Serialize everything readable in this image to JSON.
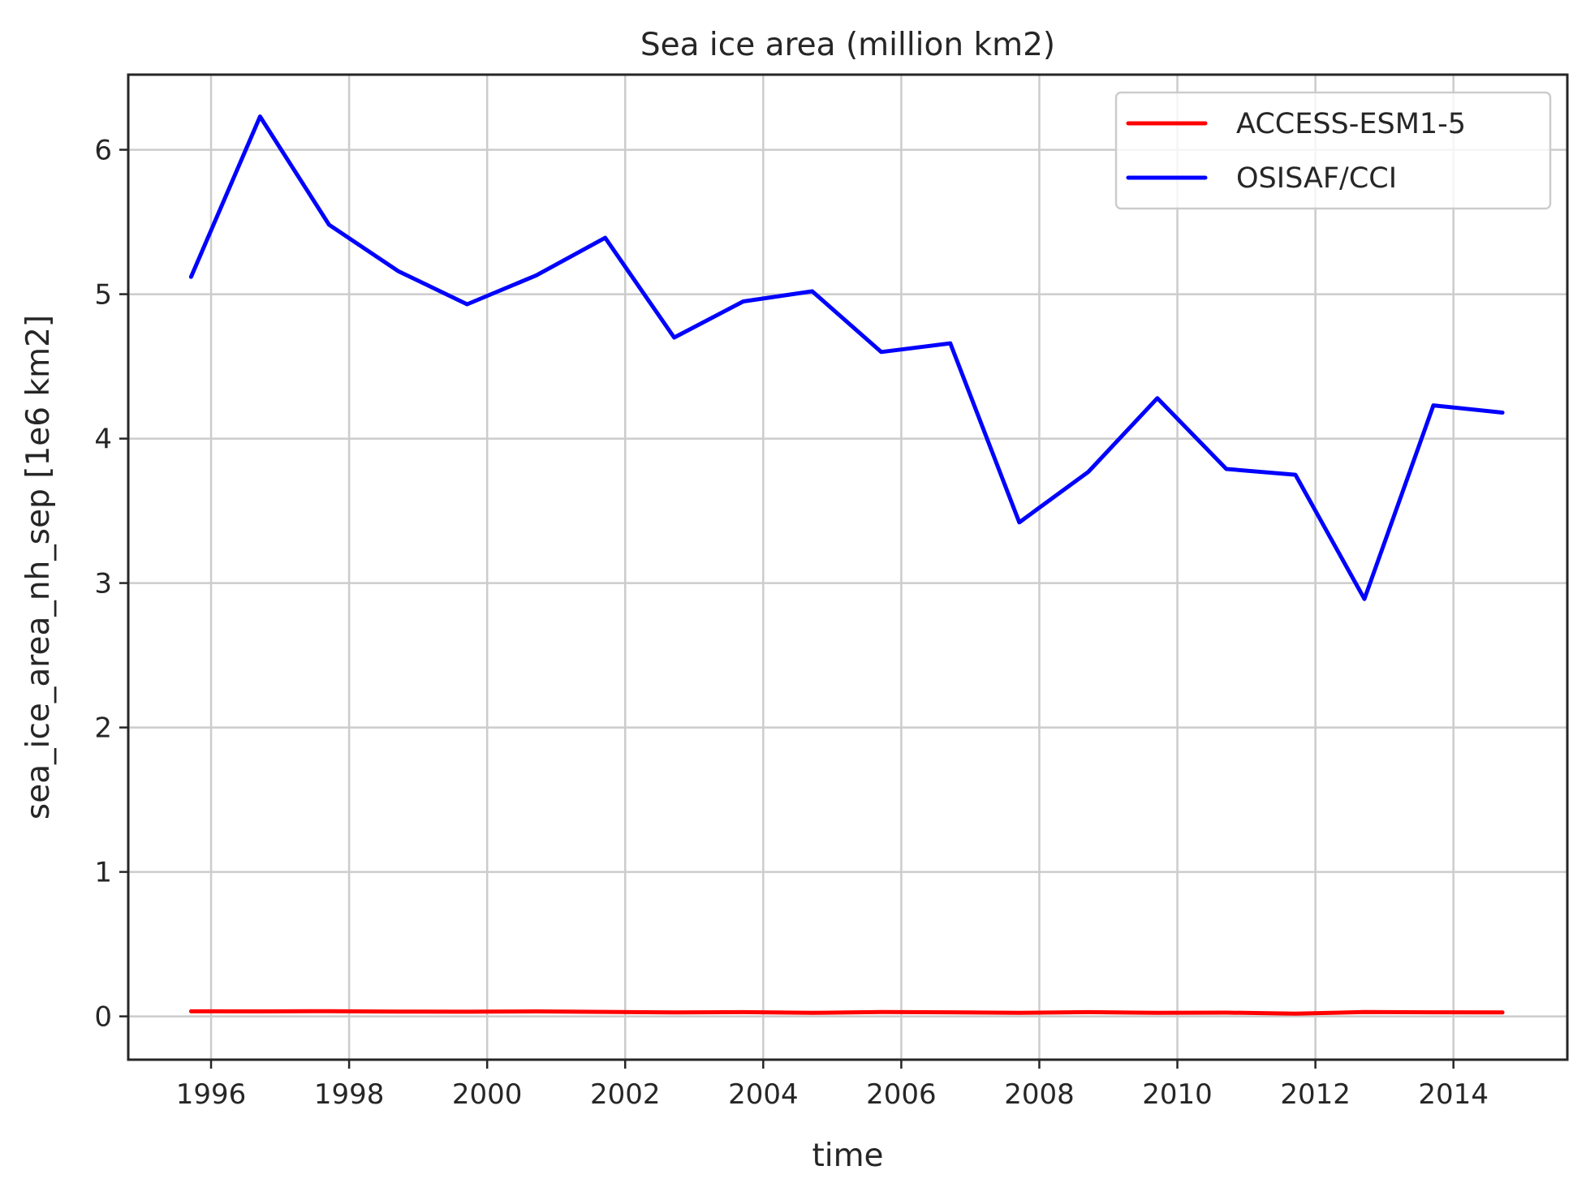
{
  "chart_data": {
    "type": "line",
    "title": "Sea ice area (million km2)",
    "xlabel": "time",
    "ylabel": "sea_ice_area_nh_sep [1e6 km2]",
    "xlim": [
      1994.8,
      2015.65
    ],
    "ylim": [
      -0.3,
      6.52
    ],
    "grid": true,
    "legend_position": "top-right",
    "x_ticks": [
      1996,
      1998,
      2000,
      2002,
      2004,
      2006,
      2008,
      2010,
      2012,
      2014
    ],
    "x_tick_labels": [
      "1996",
      "1998",
      "2000",
      "2002",
      "2004",
      "2006",
      "2008",
      "2010",
      "2012",
      "2014"
    ],
    "y_ticks": [
      0,
      1,
      2,
      3,
      4,
      5,
      6
    ],
    "y_tick_labels": [
      "0",
      "1",
      "2",
      "3",
      "4",
      "5",
      "6"
    ],
    "x": [
      1995.71,
      1996.71,
      1997.71,
      1998.71,
      1999.71,
      2000.71,
      2001.71,
      2002.71,
      2003.71,
      2004.71,
      2005.71,
      2006.71,
      2007.71,
      2008.71,
      2009.71,
      2010.71,
      2011.71,
      2012.71,
      2013.71,
      2014.71
    ],
    "series": [
      {
        "name": "ACCESS-ESM1-5",
        "color": "#ff0000",
        "values": [
          0.035,
          0.034,
          0.036,
          0.033,
          0.032,
          0.034,
          0.031,
          0.027,
          0.029,
          0.024,
          0.03,
          0.028,
          0.024,
          0.029,
          0.024,
          0.026,
          0.019,
          0.03,
          0.028,
          0.027
        ]
      },
      {
        "name": "OSISAF/CCI",
        "color": "#0000ff",
        "values": [
          5.12,
          6.23,
          5.48,
          5.16,
          4.93,
          5.13,
          5.39,
          4.7,
          4.95,
          5.02,
          4.6,
          4.66,
          3.42,
          3.77,
          4.28,
          3.79,
          3.75,
          2.89,
          4.23,
          4.18
        ]
      }
    ]
  }
}
